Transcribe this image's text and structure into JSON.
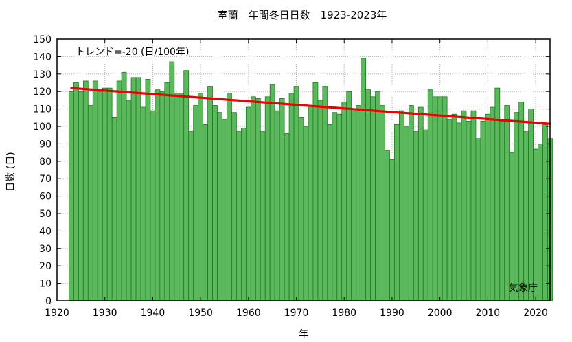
{
  "chart_data": {
    "type": "bar",
    "title": "室蘭　年間冬日日数　1923-2023年",
    "xlabel": "年",
    "ylabel": "日数 (日)",
    "xlim": [
      1920,
      2023
    ],
    "ylim": [
      0,
      150
    ],
    "x_ticks": [
      1920,
      1930,
      1940,
      1950,
      1960,
      1970,
      1980,
      1990,
      2000,
      2010,
      2020
    ],
    "y_ticks": [
      0,
      10,
      20,
      30,
      40,
      50,
      60,
      70,
      80,
      90,
      100,
      110,
      120,
      130,
      140,
      150
    ],
    "grid": true,
    "bar_color": "#5cb85c",
    "bar_edge_color": "#1e7a1e",
    "trend_color": "#ee0000",
    "trend_label": "トレンド=-20 (日/100年)",
    "trend": {
      "x": [
        1923,
        2023
      ],
      "y": [
        122,
        101.5
      ]
    },
    "source": "気象庁",
    "x": [
      1923,
      1924,
      1925,
      1926,
      1927,
      1928,
      1929,
      1930,
      1931,
      1932,
      1933,
      1934,
      1935,
      1936,
      1937,
      1938,
      1939,
      1940,
      1941,
      1942,
      1943,
      1944,
      1945,
      1946,
      1947,
      1948,
      1949,
      1950,
      1951,
      1952,
      1953,
      1954,
      1955,
      1956,
      1957,
      1958,
      1959,
      1960,
      1961,
      1962,
      1963,
      1964,
      1965,
      1966,
      1967,
      1968,
      1969,
      1970,
      1971,
      1972,
      1973,
      1974,
      1975,
      1976,
      1977,
      1978,
      1979,
      1980,
      1981,
      1982,
      1983,
      1984,
      1985,
      1986,
      1987,
      1988,
      1989,
      1990,
      1991,
      1992,
      1993,
      1994,
      1995,
      1996,
      1997,
      1998,
      1999,
      2000,
      2001,
      2002,
      2003,
      2004,
      2005,
      2006,
      2007,
      2008,
      2009,
      2010,
      2011,
      2012,
      2013,
      2014,
      2015,
      2016,
      2017,
      2018,
      2019,
      2020,
      2021,
      2022,
      2023
    ],
    "values": [
      120,
      125,
      120,
      126,
      112,
      126,
      120,
      122,
      122,
      105,
      126,
      131,
      115,
      128,
      128,
      111,
      127,
      109,
      121,
      120,
      125,
      137,
      119,
      119,
      132,
      97,
      112,
      119,
      101,
      123,
      112,
      108,
      104,
      119,
      108,
      97,
      99,
      111,
      117,
      116,
      97,
      117,
      124,
      109,
      116,
      96,
      119,
      123,
      105,
      100,
      112,
      125,
      115,
      123,
      101,
      108,
      107,
      114,
      120,
      109,
      112,
      139,
      121,
      117,
      120,
      112,
      86,
      81,
      101,
      109,
      100,
      112,
      97,
      111,
      98,
      121,
      117,
      117,
      117,
      104,
      107,
      102,
      109,
      103,
      109,
      93,
      103,
      107,
      111,
      122,
      103,
      112,
      85,
      108,
      114,
      97,
      110,
      87,
      90,
      101,
      93
    ]
  }
}
